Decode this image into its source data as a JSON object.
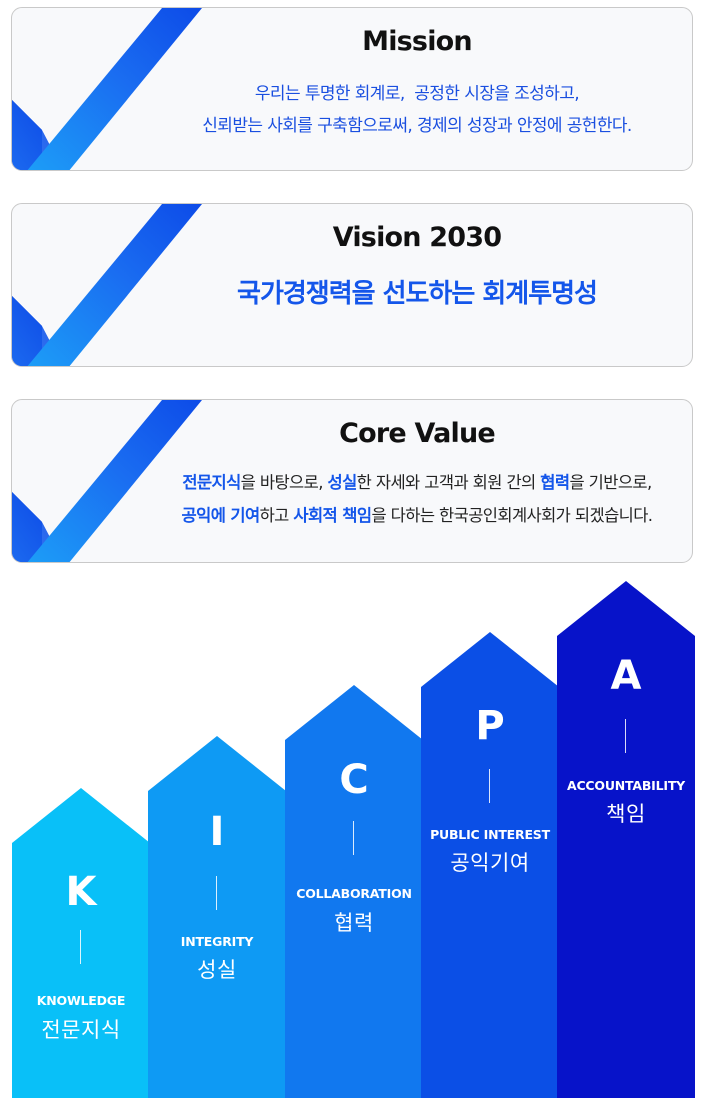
{
  "colors": {
    "accent_blue": "#1456ea",
    "k_column": "#09c0f8",
    "i_column": "#0e9af4",
    "c_column": "#1178ef",
    "p_column": "#0b4fe6",
    "a_column": "#0713c9"
  },
  "icons": {
    "card_check": "checkmark-icon"
  },
  "mission": {
    "title": "Mission",
    "line1": "우리는 투명한 회계로,  공정한 시장을 조성하고,",
    "line2": "신뢰받는 사회를 구축함으로써, 경제의 성장과 안정에 공헌한다."
  },
  "vision": {
    "title": "Vision 2030",
    "statement": "국가경쟁력을 선도하는 회계투명성"
  },
  "core_value": {
    "title": "Core Value",
    "line1": [
      {
        "text": "전문지식",
        "hl": true
      },
      {
        "text": "을 바탕으로, ",
        "hl": false
      },
      {
        "text": "성실",
        "hl": true
      },
      {
        "text": "한 자세와 고객과 회원 간의 ",
        "hl": false
      },
      {
        "text": "협력",
        "hl": true
      },
      {
        "text": "을 기반으로,",
        "hl": false
      }
    ],
    "line2": [
      {
        "text": "공익에 기여",
        "hl": true
      },
      {
        "text": "하고 ",
        "hl": false
      },
      {
        "text": "사회적 책임",
        "hl": true
      },
      {
        "text": "을 다하는 한국공인회계사회가 되겠습니다.",
        "hl": false
      }
    ]
  },
  "values": [
    {
      "letter": "K",
      "english": "KNOWLEDGE",
      "korean": "전문지식"
    },
    {
      "letter": "I",
      "english": "INTEGRITY",
      "korean": "성실"
    },
    {
      "letter": "C",
      "english": "COLLABORATION",
      "korean": "협력"
    },
    {
      "letter": "P",
      "english": "PUBLIC INTEREST",
      "korean": "공익기여"
    },
    {
      "letter": "A",
      "english": "ACCOUNTABILITY",
      "korean": "책임"
    }
  ]
}
